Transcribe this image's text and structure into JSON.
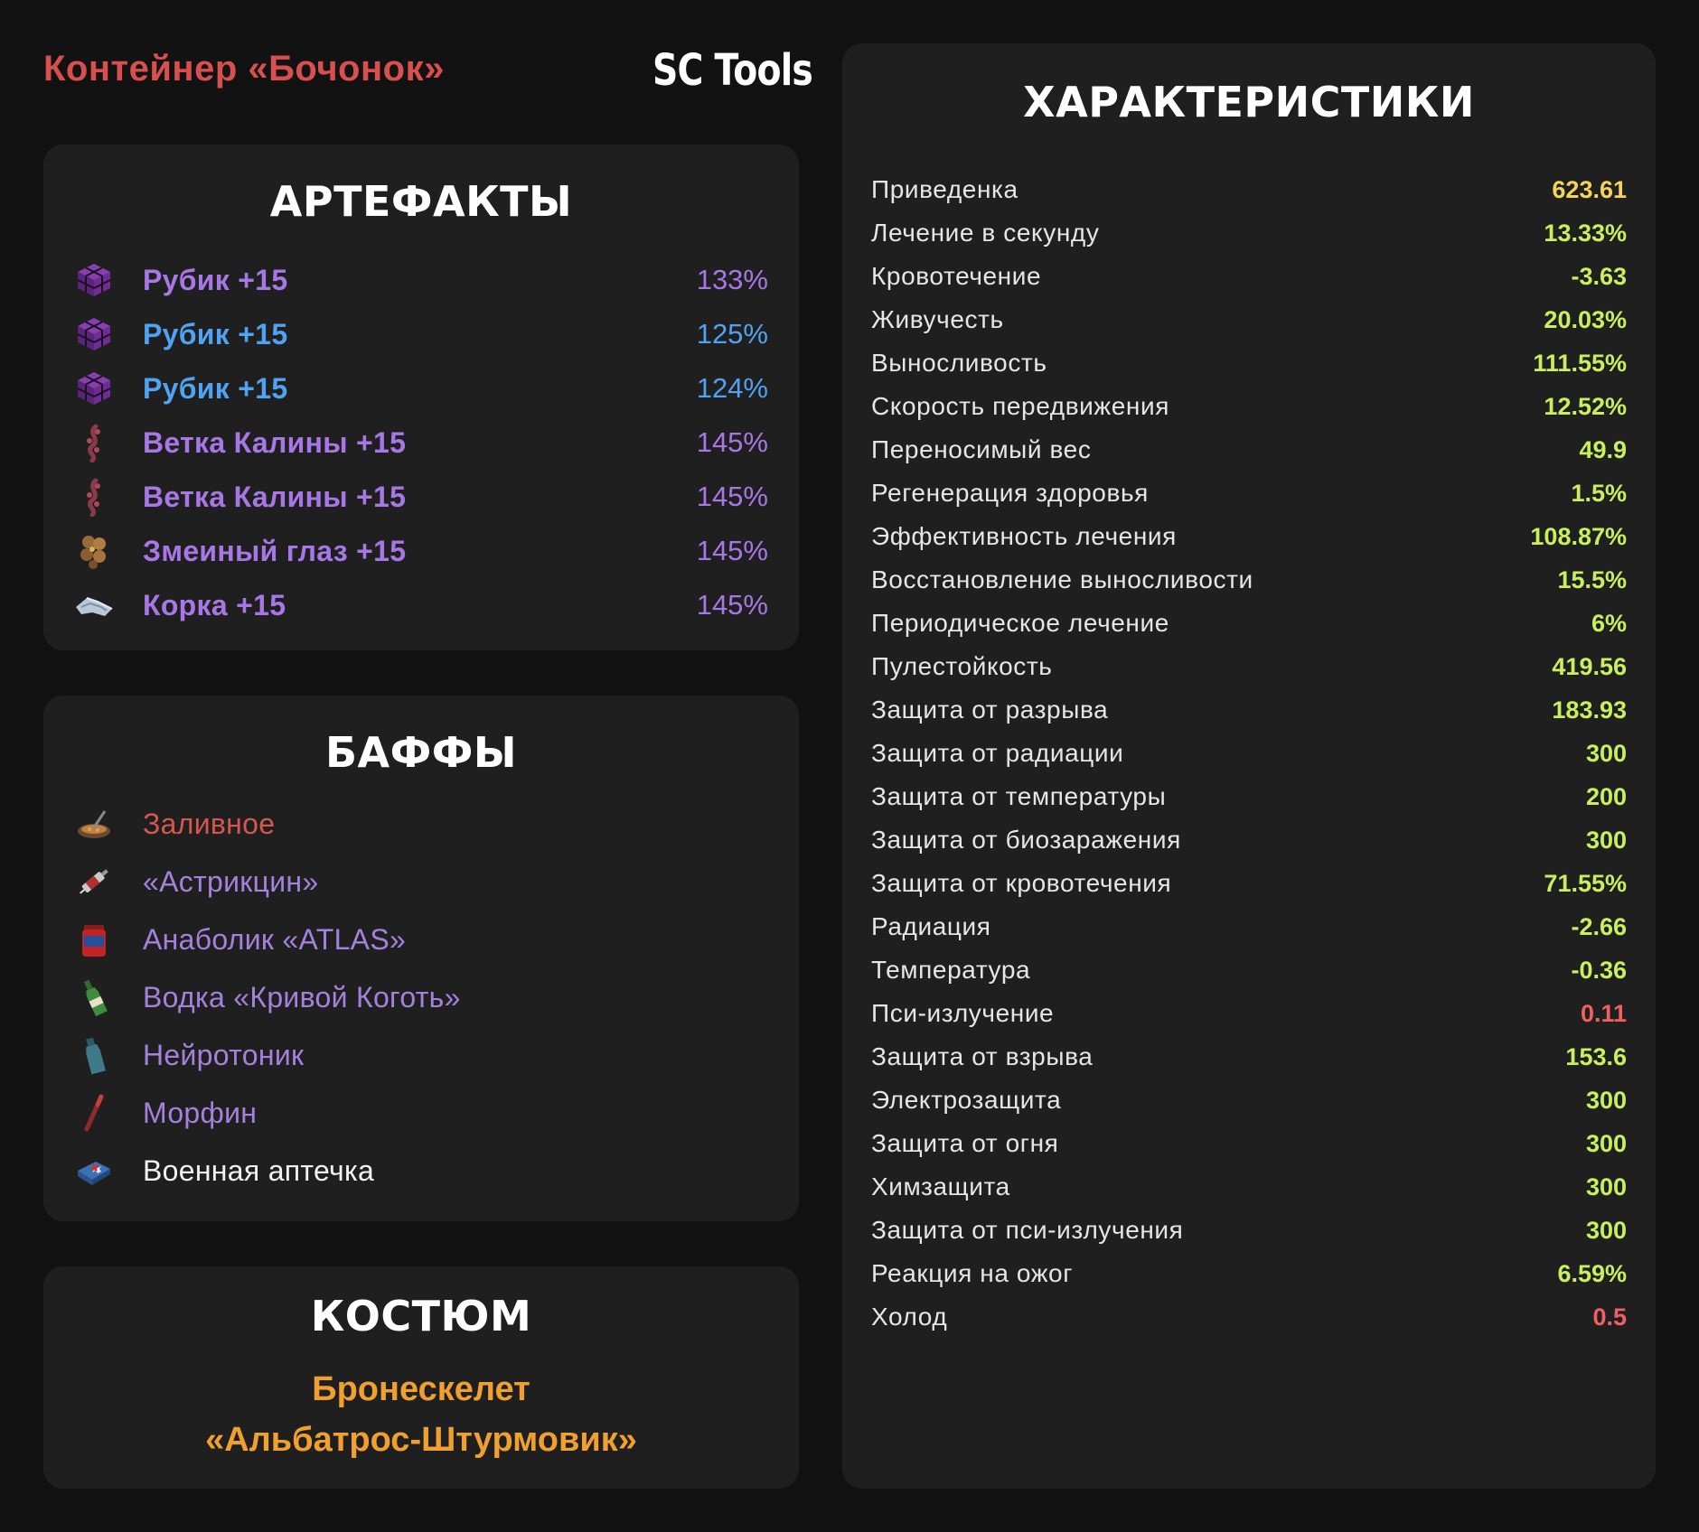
{
  "header": {
    "container_title": "Контейнер «Бочонок»",
    "brand": "SC Tools"
  },
  "artifacts": {
    "title": "АРТЕФАКТЫ",
    "items": [
      {
        "name": "Рубик +15",
        "pct": "133%",
        "color": "#a877e6",
        "icon": "rubik-cube-icon"
      },
      {
        "name": "Рубик +15",
        "pct": "125%",
        "color": "#4fa3f0",
        "icon": "rubik-cube-icon"
      },
      {
        "name": "Рубик +15",
        "pct": "124%",
        "color": "#4fa3f0",
        "icon": "rubik-cube-icon"
      },
      {
        "name": "Ветка Калины +15",
        "pct": "145%",
        "color": "#a877e6",
        "icon": "viburnum-branch-icon"
      },
      {
        "name": "Ветка Калины +15",
        "pct": "145%",
        "color": "#a877e6",
        "icon": "viburnum-branch-icon"
      },
      {
        "name": "Змеиный глаз +15",
        "pct": "145%",
        "color": "#a877e6",
        "icon": "snake-eye-icon"
      },
      {
        "name": "Корка +15",
        "pct": "145%",
        "color": "#a877e6",
        "icon": "crust-icon"
      }
    ]
  },
  "buffs": {
    "title": "БАФФЫ",
    "items": [
      {
        "name": "Заливное",
        "color": "#d4584f",
        "icon": "aspic-dish-icon"
      },
      {
        "name": "«Астрикцин»",
        "color": "#a481dc",
        "icon": "syringe-icon"
      },
      {
        "name": "Анаболик «ATLAS»",
        "color": "#a481dc",
        "icon": "supplement-jar-icon"
      },
      {
        "name": "Водка «Кривой Коготь»",
        "color": "#a481dc",
        "icon": "vodka-bottle-icon"
      },
      {
        "name": "Нейротоник",
        "color": "#a481dc",
        "icon": "tonic-bottle-icon"
      },
      {
        "name": "Морфин",
        "color": "#a481dc",
        "icon": "morphine-syringe-icon"
      },
      {
        "name": "Военная аптечка",
        "color": "#f2f2f2",
        "icon": "military-medkit-icon"
      }
    ]
  },
  "suit": {
    "title": "КОСТЮМ",
    "line1": "Бронескелет",
    "line2": "«Альбатрос-Штурмовик»",
    "color": "#f0a030"
  },
  "stats": {
    "title": "ХАРАКТЕРИСТИКИ",
    "items": [
      {
        "label": "Приведенка",
        "value": "623.61",
        "tone": "yellow"
      },
      {
        "label": "Лечение в секунду",
        "value": "13.33%",
        "tone": "green"
      },
      {
        "label": "Кровотечение",
        "value": "-3.63",
        "tone": "green"
      },
      {
        "label": "Живучесть",
        "value": "20.03%",
        "tone": "green"
      },
      {
        "label": "Выносливость",
        "value": "111.55%",
        "tone": "green"
      },
      {
        "label": "Скорость передвижения",
        "value": "12.52%",
        "tone": "green"
      },
      {
        "label": "Переносимый вес",
        "value": "49.9",
        "tone": "green"
      },
      {
        "label": "Регенерация здоровья",
        "value": "1.5%",
        "tone": "green"
      },
      {
        "label": "Эффективность лечения",
        "value": "108.87%",
        "tone": "green"
      },
      {
        "label": "Восстановление выносливости",
        "value": "15.5%",
        "tone": "green"
      },
      {
        "label": "Периодическое лечение",
        "value": "6%",
        "tone": "green"
      },
      {
        "label": "Пулестойкость",
        "value": "419.56",
        "tone": "green"
      },
      {
        "label": "Защита от разрыва",
        "value": "183.93",
        "tone": "green"
      },
      {
        "label": "Защита от радиации",
        "value": "300",
        "tone": "green"
      },
      {
        "label": "Защита от температуры",
        "value": "200",
        "tone": "green"
      },
      {
        "label": "Защита от биозаражения",
        "value": "300",
        "tone": "green"
      },
      {
        "label": "Защита от кровотечения",
        "value": "71.55%",
        "tone": "green"
      },
      {
        "label": "Радиация",
        "value": "-2.66",
        "tone": "green"
      },
      {
        "label": "Температура",
        "value": "-0.36",
        "tone": "green"
      },
      {
        "label": "Пси-излучение",
        "value": "0.11",
        "tone": "red"
      },
      {
        "label": "Защита от взрыва",
        "value": "153.6",
        "tone": "green"
      },
      {
        "label": "Электрозащита",
        "value": "300",
        "tone": "green"
      },
      {
        "label": "Защита от огня",
        "value": "300",
        "tone": "green"
      },
      {
        "label": "Химзащита",
        "value": "300",
        "tone": "green"
      },
      {
        "label": "Защита от пси-излучения",
        "value": "300",
        "tone": "green"
      },
      {
        "label": "Реакция на ожог",
        "value": "6.59%",
        "tone": "green"
      },
      {
        "label": "Холод",
        "value": "0.5",
        "tone": "red"
      }
    ]
  }
}
